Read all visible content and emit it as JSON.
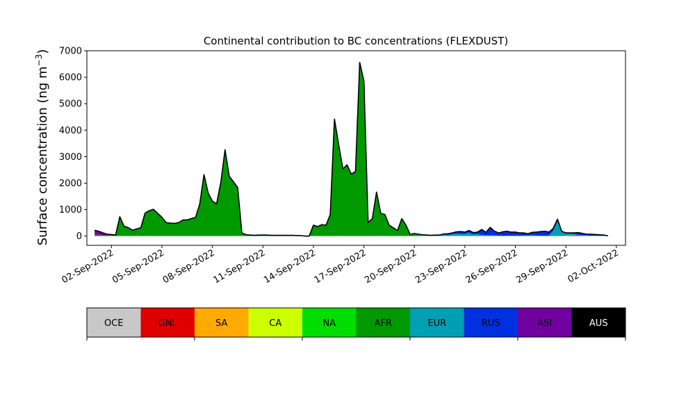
{
  "chart_data": {
    "type": "area",
    "title": "Continental contribution to BC concentrations (FLEXDUST)",
    "xlabel": "",
    "ylabel_main": "Surface concentration (ng m",
    "ylabel_sup": "−3",
    "ylabel_close": ")",
    "x_start": "2022-09-01",
    "x_step_days": 0.25,
    "xlim": [
      "2022-08-31T13:00",
      "2022-10-02T13:00"
    ],
    "ylim": [
      -350,
      7000
    ],
    "yticks": [
      0,
      1000,
      2000,
      3000,
      4000,
      5000,
      6000,
      7000
    ],
    "ytick_labels": [
      "0",
      "1000",
      "2000",
      "3000",
      "4000",
      "5000",
      "6000",
      "7000"
    ],
    "xticks": [
      "2022-09-02",
      "2022-09-05",
      "2022-09-08",
      "2022-09-11",
      "2022-09-14",
      "2022-09-17",
      "2022-09-20",
      "2022-09-23",
      "2022-09-26",
      "2022-09-29",
      "2022-10-02"
    ],
    "xtick_labels": [
      "02-Sep-2022",
      "05-Sep-2022",
      "08-Sep-2022",
      "11-Sep-2022",
      "14-Sep-2022",
      "17-Sep-2022",
      "20-Sep-2022",
      "23-Sep-2022",
      "26-Sep-2022",
      "29-Sep-2022",
      "02-Oct-2022"
    ],
    "total_line_color": "#000000",
    "series": [
      {
        "name": "OCE",
        "color": "#c8c8c8",
        "values": [
          0,
          0,
          0,
          0,
          0,
          0,
          0,
          0,
          0,
          0,
          0,
          0,
          0,
          0,
          0,
          0,
          0,
          0,
          0,
          0,
          0,
          0,
          0,
          0,
          0,
          0,
          0,
          0,
          0,
          0,
          0,
          0,
          0,
          0,
          0,
          0,
          0,
          0,
          0,
          0,
          0,
          0,
          0,
          0,
          0,
          0,
          0,
          0,
          0,
          0,
          0,
          0,
          0,
          0,
          0,
          0,
          0,
          0,
          0,
          0,
          0,
          0,
          0,
          0,
          0,
          0,
          0,
          0,
          0,
          0,
          0,
          0,
          0,
          0,
          0,
          0,
          0,
          0,
          0,
          0,
          0,
          0,
          0,
          0,
          0,
          0,
          0,
          0,
          0,
          0,
          0,
          0,
          0,
          0,
          0,
          0,
          0,
          0,
          0,
          0,
          0,
          0,
          0,
          0,
          0,
          0,
          0,
          0,
          0,
          0,
          0,
          0,
          0,
          0,
          0,
          0,
          0,
          0,
          0,
          0,
          0,
          0,
          0
        ]
      },
      {
        "name": "GNL",
        "color": "#e00000",
        "values": [
          0,
          0,
          0,
          0,
          0,
          0,
          0,
          0,
          0,
          0,
          0,
          0,
          0,
          0,
          0,
          0,
          0,
          0,
          0,
          0,
          0,
          0,
          0,
          0,
          0,
          0,
          0,
          0,
          0,
          0,
          0,
          0,
          0,
          0,
          0,
          0,
          0,
          0,
          0,
          0,
          0,
          0,
          0,
          0,
          0,
          0,
          0,
          0,
          0,
          0,
          0,
          0,
          0,
          0,
          0,
          0,
          0,
          0,
          0,
          0,
          0,
          0,
          0,
          0,
          0,
          0,
          0,
          0,
          0,
          0,
          0,
          0,
          0,
          0,
          0,
          0,
          0,
          0,
          0,
          0,
          0,
          0,
          0,
          0,
          0,
          0,
          0,
          0,
          0,
          0,
          0,
          0,
          0,
          0,
          0,
          0,
          0,
          0,
          0,
          0,
          0,
          0,
          0,
          0,
          0,
          0,
          0,
          0,
          0,
          0,
          0,
          0,
          0,
          20,
          30,
          10,
          0,
          0,
          0,
          0,
          0,
          0,
          0
        ]
      },
      {
        "name": "SA",
        "color": "#ffaa00",
        "values": [
          0,
          0,
          0,
          0,
          0,
          0,
          0,
          0,
          0,
          0,
          0,
          0,
          0,
          0,
          0,
          0,
          0,
          0,
          0,
          0,
          0,
          0,
          0,
          0,
          0,
          0,
          0,
          0,
          0,
          0,
          0,
          0,
          0,
          0,
          0,
          0,
          0,
          0,
          0,
          0,
          0,
          0,
          0,
          0,
          0,
          0,
          0,
          0,
          0,
          0,
          0,
          0,
          0,
          0,
          0,
          0,
          0,
          0,
          0,
          0,
          0,
          0,
          0,
          0,
          0,
          0,
          0,
          0,
          0,
          0,
          0,
          0,
          0,
          0,
          0,
          0,
          0,
          0,
          0,
          0,
          0,
          0,
          0,
          0,
          0,
          0,
          0,
          0,
          0,
          0,
          0,
          0,
          0,
          0,
          0,
          0,
          0,
          0,
          0,
          0,
          0,
          0,
          0,
          0,
          0,
          0,
          0,
          0,
          0,
          0,
          0,
          0,
          10,
          10,
          10,
          0,
          0,
          0,
          0,
          0,
          0,
          0,
          0
        ]
      },
      {
        "name": "CA",
        "color": "#ccff00",
        "values": [
          0,
          0,
          0,
          0,
          0,
          0,
          0,
          0,
          0,
          0,
          0,
          0,
          0,
          0,
          0,
          0,
          0,
          0,
          0,
          0,
          0,
          0,
          0,
          0,
          0,
          0,
          0,
          0,
          0,
          0,
          0,
          0,
          0,
          0,
          0,
          0,
          0,
          0,
          0,
          0,
          0,
          0,
          0,
          0,
          0,
          0,
          0,
          0,
          0,
          0,
          0,
          0,
          0,
          0,
          0,
          0,
          0,
          0,
          0,
          0,
          0,
          0,
          0,
          0,
          0,
          0,
          0,
          0,
          0,
          0,
          0,
          0,
          0,
          0,
          0,
          0,
          0,
          0,
          0,
          0,
          0,
          0,
          0,
          0,
          0,
          0,
          0,
          0,
          0,
          0,
          0,
          0,
          0,
          0,
          0,
          0,
          0,
          0,
          0,
          0,
          0,
          0,
          0,
          0,
          0,
          0,
          0,
          0,
          0,
          0,
          0,
          0,
          0,
          0,
          0,
          0,
          0,
          0,
          0,
          0,
          0,
          0,
          0
        ]
      },
      {
        "name": "NA",
        "color": "#00dd00",
        "values": [
          0,
          0,
          0,
          0,
          0,
          0,
          0,
          0,
          0,
          0,
          0,
          0,
          0,
          0,
          0,
          0,
          0,
          0,
          0,
          0,
          0,
          0,
          0,
          0,
          0,
          0,
          0,
          0,
          0,
          0,
          0,
          0,
          0,
          0,
          0,
          0,
          0,
          0,
          0,
          0,
          0,
          0,
          0,
          0,
          0,
          0,
          0,
          0,
          0,
          0,
          0,
          0,
          0,
          0,
          0,
          0,
          0,
          0,
          0,
          0,
          0,
          0,
          0,
          0,
          0,
          0,
          0,
          0,
          0,
          0,
          0,
          0,
          0,
          0,
          0,
          0,
          0,
          0,
          0,
          0,
          0,
          0,
          0,
          0,
          0,
          0,
          0,
          0,
          0,
          0,
          0,
          0,
          0,
          0,
          0,
          0,
          0,
          0,
          0,
          0,
          0,
          0,
          0,
          0,
          0,
          0,
          0,
          0,
          0,
          0,
          0,
          0,
          0,
          0,
          0,
          0,
          0,
          0,
          0,
          0,
          0,
          0,
          0
        ]
      },
      {
        "name": "AFR",
        "color": "#009900",
        "values": [
          60,
          50,
          30,
          20,
          20,
          10,
          700,
          350,
          300,
          200,
          250,
          300,
          850,
          950,
          1000,
          850,
          700,
          500,
          480,
          470,
          500,
          600,
          600,
          650,
          700,
          1200,
          2300,
          1600,
          1300,
          1200,
          2000,
          3200,
          2200,
          2000,
          1800,
          100,
          40,
          30,
          20,
          30,
          30,
          30,
          20,
          20,
          20,
          20,
          20,
          20,
          10,
          10,
          0,
          0,
          400,
          350,
          420,
          400,
          800,
          4400,
          3400,
          2500,
          2650,
          2300,
          2400,
          6500,
          5800,
          500,
          650,
          1650,
          850,
          800,
          400,
          300,
          200,
          650,
          400,
          50,
          80,
          30,
          10,
          10,
          10,
          0,
          0,
          0,
          0,
          10,
          10,
          10,
          0,
          0,
          0,
          0,
          0,
          0,
          0,
          0,
          0,
          0,
          0,
          0,
          0,
          0,
          0,
          0,
          0,
          0,
          0,
          0,
          0,
          0,
          0,
          0,
          0,
          0,
          0,
          0,
          10,
          10,
          0,
          0,
          0,
          0,
          0,
          0,
          0,
          0,
          0
        ]
      },
      {
        "name": "EUR",
        "color": "#00a0b4",
        "values": [
          0,
          0,
          0,
          0,
          0,
          0,
          0,
          0,
          0,
          0,
          0,
          0,
          0,
          0,
          0,
          0,
          0,
          0,
          0,
          0,
          0,
          0,
          0,
          0,
          0,
          0,
          0,
          0,
          0,
          0,
          0,
          0,
          0,
          0,
          0,
          0,
          0,
          0,
          0,
          0,
          0,
          0,
          0,
          0,
          0,
          0,
          0,
          0,
          0,
          0,
          0,
          0,
          0,
          0,
          0,
          0,
          0,
          0,
          0,
          0,
          0,
          0,
          0,
          0,
          0,
          0,
          0,
          0,
          0,
          0,
          0,
          0,
          0,
          0,
          0,
          0,
          10,
          10,
          10,
          10,
          10,
          20,
          30,
          50,
          40,
          60,
          80,
          70,
          80,
          120,
          60,
          80,
          40,
          30,
          20,
          30,
          10,
          10,
          10,
          10,
          10,
          10,
          20,
          20,
          30,
          20,
          10,
          10,
          20,
          200,
          550,
          150,
          80,
          60,
          40,
          20,
          20,
          20,
          10,
          10,
          10,
          10,
          0
        ]
      },
      {
        "name": "RUS",
        "color": "#0030e0",
        "values": [
          0,
          0,
          0,
          0,
          0,
          0,
          0,
          0,
          0,
          0,
          0,
          0,
          0,
          0,
          0,
          0,
          0,
          0,
          0,
          0,
          0,
          0,
          0,
          0,
          0,
          0,
          0,
          0,
          0,
          0,
          0,
          0,
          0,
          0,
          0,
          0,
          0,
          0,
          0,
          0,
          0,
          0,
          0,
          0,
          0,
          0,
          0,
          0,
          0,
          0,
          0,
          0,
          0,
          0,
          0,
          0,
          0,
          0,
          0,
          0,
          0,
          0,
          0,
          0,
          0,
          0,
          0,
          0,
          0,
          0,
          0,
          0,
          0,
          0,
          0,
          0,
          0,
          20,
          20,
          10,
          0,
          10,
          0,
          20,
          40,
          40,
          60,
          80,
          60,
          80,
          60,
          60,
          200,
          100,
          300,
          150,
          100,
          140,
          160,
          130,
          130,
          100,
          90,
          60,
          100,
          120,
          150,
          160,
          120,
          80,
          80,
          20,
          20,
          20,
          30,
          90,
          60,
          30,
          50,
          40,
          30,
          20,
          10
        ]
      },
      {
        "name": "ASI",
        "color": "#7000a0",
        "values": [
          160,
          130,
          90,
          50,
          40,
          30,
          30,
          20,
          20,
          20,
          20,
          20,
          20,
          10,
          10,
          10,
          10,
          10,
          10,
          10,
          10,
          10,
          10,
          10,
          10,
          20,
          20,
          20,
          20,
          20,
          30,
          60,
          60,
          50,
          40,
          20,
          10,
          10,
          10,
          10,
          10,
          10,
          10,
          10,
          10,
          10,
          10,
          10,
          10,
          10,
          0,
          0,
          10,
          10,
          10,
          10,
          10,
          20,
          60,
          40,
          40,
          40,
          40,
          60,
          60,
          10,
          10,
          10,
          10,
          10,
          10,
          10,
          10,
          10,
          10,
          10,
          10,
          10,
          10,
          10,
          10,
          10,
          10,
          10,
          10,
          10,
          10,
          10,
          10,
          10,
          10,
          10,
          10,
          10,
          10,
          10,
          10,
          10,
          10,
          10,
          10,
          10,
          10,
          10,
          10,
          10,
          10,
          10,
          10,
          10,
          10,
          10,
          10,
          10,
          10,
          10,
          10,
          10,
          10,
          10,
          10,
          10,
          0
        ]
      },
      {
        "name": "AUS",
        "color": "#000000",
        "values": [
          0,
          0,
          0,
          0,
          0,
          0,
          0,
          0,
          0,
          0,
          0,
          0,
          0,
          0,
          0,
          0,
          0,
          0,
          0,
          0,
          0,
          0,
          0,
          0,
          0,
          0,
          0,
          0,
          0,
          0,
          0,
          0,
          0,
          0,
          0,
          0,
          0,
          0,
          0,
          0,
          0,
          0,
          0,
          0,
          0,
          0,
          0,
          0,
          0,
          0,
          0,
          0,
          0,
          0,
          0,
          0,
          0,
          0,
          0,
          0,
          0,
          0,
          0,
          0,
          0,
          0,
          0,
          0,
          0,
          0,
          0,
          0,
          0,
          0,
          0,
          0,
          0,
          0,
          0,
          0,
          0,
          0,
          0,
          0,
          0,
          0,
          0,
          0,
          0,
          0,
          0,
          0,
          0,
          0,
          0,
          0,
          0,
          0,
          0,
          0,
          0,
          0,
          0,
          0,
          0,
          0,
          0,
          0,
          0,
          0,
          0,
          0,
          0,
          0,
          0,
          0,
          0,
          0,
          0,
          0,
          0,
          0,
          0
        ]
      }
    ],
    "legend": {
      "placement": "bottom",
      "text_colors": [
        "#000000",
        "#000000",
        "#000000",
        "#000000",
        "#000000",
        "#000000",
        "#000000",
        "#000000",
        "#000000",
        "#ffffff"
      ]
    }
  }
}
